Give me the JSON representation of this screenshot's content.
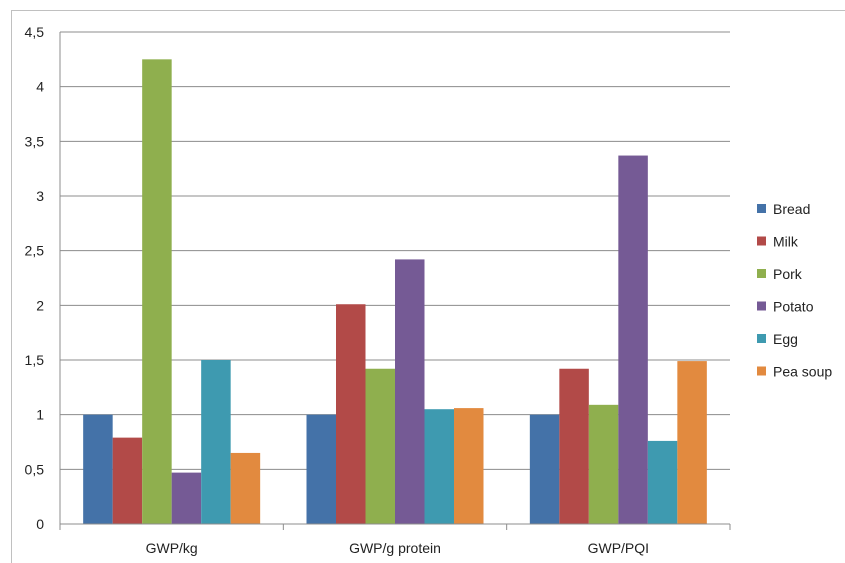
{
  "chart_data": {
    "type": "bar",
    "categories": [
      "GWP/kg",
      "GWP/g protein",
      "GWP/PQI"
    ],
    "series": [
      {
        "name": "Bread",
        "color": "#4472a8",
        "values": [
          1.0,
          1.0,
          1.0
        ]
      },
      {
        "name": "Milk",
        "color": "#b24a48",
        "values": [
          0.79,
          2.01,
          1.42
        ]
      },
      {
        "name": "Pork",
        "color": "#8faf4e",
        "values": [
          4.25,
          1.42,
          1.09
        ]
      },
      {
        "name": "Potato",
        "color": "#755a95",
        "values": [
          0.47,
          2.42,
          3.37
        ]
      },
      {
        "name": "Egg",
        "color": "#3e9ab0",
        "values": [
          1.5,
          1.05,
          0.76
        ]
      },
      {
        "name": "Pea soup",
        "color": "#e28a3f",
        "values": [
          0.65,
          1.06,
          1.49
        ]
      }
    ],
    "ylim": [
      0,
      4.5
    ],
    "yticks": [
      "0",
      "0,5",
      "1",
      "1,5",
      "2",
      "2,5",
      "3",
      "3,5",
      "4",
      "4,5"
    ],
    "grid": true,
    "legend": "right"
  }
}
